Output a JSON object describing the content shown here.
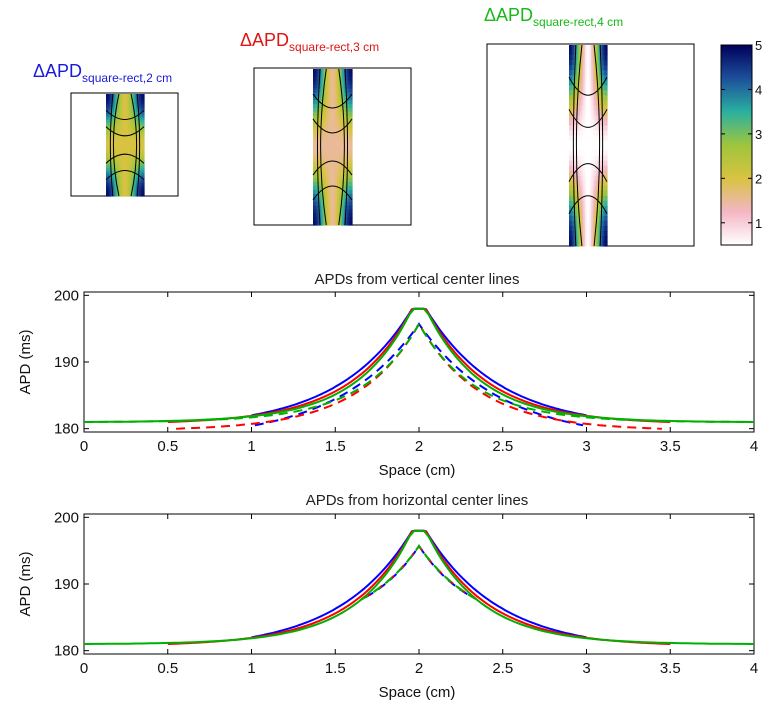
{
  "chart_data": [
    {
      "type": "heatmap",
      "name": "colorbar",
      "colormap": [
        "#ffffff",
        "#f3b6c4",
        "#d8c341",
        "#9ec53c",
        "#2ab0a0",
        "#1d4f9c",
        "#00005a"
      ],
      "clim": [
        0.5,
        5
      ],
      "ticks": [
        "1",
        "2",
        "3",
        "4",
        "5"
      ],
      "tick_values": [
        1,
        2,
        3,
        4,
        5
      ]
    },
    {
      "type": "heatmap",
      "name": "map-2cm",
      "title_main": "ΔAPD",
      "title_sub": "square-rect,2 cm",
      "title_color": "#1a1ad8",
      "strip_vmin": 2.0,
      "strip_vmax": 4.9
    },
    {
      "type": "heatmap",
      "name": "map-3cm",
      "title_main": "ΔAPD",
      "title_sub": "square-rect,3 cm",
      "title_color": "#e11414",
      "strip_vmin": 1.5,
      "strip_vmax": 4.9
    },
    {
      "type": "heatmap",
      "name": "map-4cm",
      "title_main": "ΔAPD",
      "title_sub": "square-rect,4 cm",
      "title_color": "#16b916",
      "strip_vmin": 0.5,
      "strip_vmax": 4.9
    },
    {
      "type": "line",
      "title": "APDs from vertical center lines",
      "xlabel": "Space (cm)",
      "ylabel": "APD (ms)",
      "xlim": [
        0,
        4
      ],
      "ylim": [
        179.5,
        200.5
      ],
      "xticks": [
        "0",
        "0.5",
        "1",
        "1.5",
        "2",
        "2.5",
        "3",
        "3.5",
        "4"
      ],
      "yticks": [
        "180",
        "190",
        "200"
      ],
      "series": [
        {
          "color": "#0000ff",
          "dash": false,
          "half": 1,
          "base": 182,
          "peak": 198,
          "flat": 0.04,
          "k": 2.2
        },
        {
          "color": "#ff0000",
          "dash": false,
          "half": 1.5,
          "base": 181,
          "peak": 198,
          "flat": 0.04,
          "k": 4.0
        },
        {
          "color": "#00b000",
          "dash": false,
          "half": 2,
          "base": 181,
          "peak": 198,
          "flat": 0.04,
          "k": 6.0
        },
        {
          "color": "#0000ff",
          "dash": true,
          "half": 0.98,
          "base": 180.5,
          "peak": 195.7,
          "flat": 0,
          "k": 2.0
        },
        {
          "color": "#ff0000",
          "dash": true,
          "half": 1.45,
          "base": 180,
          "peak": 195.7,
          "flat": 0,
          "k": 4.0
        },
        {
          "color": "#00b000",
          "dash": true,
          "half": 2,
          "base": 181,
          "peak": 195.7,
          "flat": 0,
          "k": 6.0
        }
      ]
    },
    {
      "type": "line",
      "title": "APDs from horizontal center lines",
      "xlabel": "Space (cm)",
      "ylabel": "APD (ms)",
      "xlim": [
        0,
        4
      ],
      "ylim": [
        179.5,
        200.5
      ],
      "xticks": [
        "0",
        "0.5",
        "1",
        "1.5",
        "2",
        "2.5",
        "3",
        "3.5",
        "4"
      ],
      "yticks": [
        "180",
        "190",
        "200"
      ],
      "series": [
        {
          "color": "#0000ff",
          "dash": false,
          "half": 1,
          "base": 182,
          "peak": 198,
          "flat": 0.04,
          "k": 2.2
        },
        {
          "color": "#ff0000",
          "dash": false,
          "half": 1.5,
          "base": 181,
          "peak": 198,
          "flat": 0.04,
          "k": 4.0
        },
        {
          "color": "#00b000",
          "dash": false,
          "half": 2,
          "base": 181,
          "peak": 198,
          "flat": 0.04,
          "k": 6.0
        },
        {
          "color": "#0000ff",
          "dash": true,
          "half": 0.32,
          "base": 188,
          "peak": 195.7,
          "flat": 0,
          "k": 1.0
        },
        {
          "color": "#ff0000",
          "dash": true,
          "half": 0.34,
          "base": 187.8,
          "peak": 195.7,
          "flat": 0,
          "k": 1.0
        },
        {
          "color": "#00b000",
          "dash": true,
          "half": 0.35,
          "base": 187.6,
          "peak": 195.7,
          "flat": 0,
          "k": 1.0
        }
      ]
    }
  ]
}
